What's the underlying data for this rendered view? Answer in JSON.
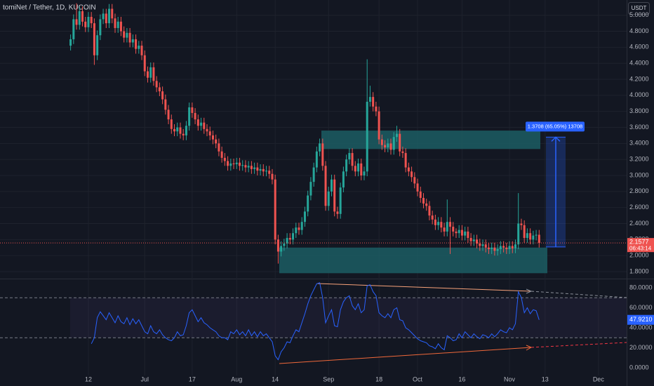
{
  "chart_data": {
    "type": "candlestick",
    "title": "tomiNet / Tether, 1D, KUCOIN",
    "currency_button": "USDT",
    "countdown": "06:43:14",
    "up_color": "#26a69a",
    "down_color": "#ef5350",
    "grid": true,
    "categories": [
      null,
      null,
      null,
      null,
      null,
      null,
      "12",
      null,
      null,
      null,
      null,
      null,
      null,
      null,
      null,
      null,
      null,
      null,
      null,
      null,
      null,
      null,
      null,
      null,
      null,
      "Jul",
      null,
      null,
      null,
      null,
      null,
      null,
      null,
      null,
      null,
      null,
      null,
      null,
      null,
      null,
      null,
      "17",
      null,
      null,
      null,
      null,
      null,
      null,
      null,
      null,
      null,
      null,
      null,
      null,
      null,
      null,
      "Aug",
      null,
      null,
      null,
      null,
      null,
      null,
      null,
      null,
      null,
      null,
      null,
      null,
      "14",
      null,
      null,
      null,
      null,
      null,
      null,
      null,
      null,
      null,
      null,
      null,
      null,
      null,
      null,
      null,
      null,
      null,
      "Sep",
      null,
      null,
      null,
      null,
      null,
      null,
      null,
      null,
      null,
      null,
      null,
      null,
      null,
      null,
      null,
      null,
      "18",
      null,
      null,
      null,
      null,
      null,
      null,
      null,
      null,
      null,
      null,
      null,
      null,
      "Oct",
      null,
      null,
      null,
      null,
      null,
      null,
      null,
      null,
      null,
      null,
      null,
      null,
      null,
      null,
      "16",
      null,
      null,
      null,
      null,
      null,
      null,
      null,
      null,
      null,
      null,
      null,
      null,
      null,
      null,
      null,
      "Nov",
      null,
      null,
      null,
      null,
      null,
      null,
      null,
      null,
      null,
      null,
      null,
      "13",
      null,
      null,
      null,
      null,
      null,
      null,
      null,
      null,
      null,
      null,
      null,
      null,
      null,
      null,
      null,
      null,
      null,
      "Dec",
      null,
      null,
      null,
      null,
      null,
      null,
      null,
      null,
      null
    ],
    "open": [
      4.62,
      4.7,
      4.95,
      4.88,
      5.05,
      4.92,
      4.85,
      4.98,
      4.9,
      4.5,
      4.75,
      4.95,
      5.02,
      4.9,
      5.08,
      4.96,
      4.84,
      4.92,
      4.8,
      4.72,
      4.78,
      4.66,
      4.7,
      4.58,
      4.62,
      4.5,
      4.3,
      4.22,
      4.35,
      4.18,
      4.1,
      4.05,
      3.95,
      3.82,
      3.7,
      3.58,
      3.55,
      3.6,
      3.52,
      3.5,
      3.62,
      3.85,
      3.78,
      3.7,
      3.62,
      3.66,
      3.58,
      3.55,
      3.5,
      3.45,
      3.4,
      3.3,
      3.22,
      3.18,
      3.12,
      3.15,
      3.14,
      3.16,
      3.12,
      3.13,
      3.1,
      3.12,
      3.08,
      3.1,
      3.06,
      3.08,
      3.05,
      3.06,
      3.02,
      2.95,
      2.2,
      2.05,
      2.12,
      2.15,
      2.22,
      2.2,
      2.28,
      2.35,
      2.32,
      2.42,
      2.55,
      2.75,
      2.92,
      3.1,
      3.3,
      3.4,
      3.12,
      2.62,
      2.8,
      2.95,
      2.55,
      2.52,
      2.85,
      3.05,
      3.2,
      3.28,
      3.12,
      3.05,
      3.15,
      3.0,
      3.05,
      3.92,
      3.98,
      3.86,
      3.8,
      3.45,
      3.38,
      3.35,
      3.4,
      3.32,
      3.48,
      3.52,
      3.3,
      3.28,
      3.1,
      3.05,
      2.98,
      2.9,
      2.8,
      2.72,
      2.65,
      2.62,
      2.5,
      2.45,
      2.38,
      2.42,
      2.35,
      2.3,
      2.42,
      2.36,
      2.3,
      2.28,
      2.32,
      2.25,
      2.3,
      2.22,
      2.18,
      2.2,
      2.15,
      2.12,
      2.14,
      2.1,
      2.08,
      2.1,
      2.06,
      2.08,
      2.12,
      2.1,
      2.08,
      2.12,
      2.09,
      2.14,
      2.4,
      2.38,
      2.22,
      2.28,
      2.2,
      2.25,
      2.26,
      null,
      null,
      null,
      null,
      null,
      null,
      null,
      null,
      null,
      null,
      null,
      null,
      null,
      null,
      null,
      null,
      null,
      null,
      null,
      null,
      null,
      null,
      null,
      null,
      null,
      null,
      null,
      null,
      null
    ],
    "high": [
      4.76,
      5.01,
      5.15,
      5.11,
      5.11,
      4.98,
      5.04,
      5.04,
      4.96,
      4.81,
      5.01,
      5.08,
      5.08,
      5.14,
      5.14,
      5.02,
      4.98,
      4.98,
      4.86,
      4.84,
      4.84,
      4.76,
      4.76,
      4.68,
      4.68,
      4.56,
      4.36,
      4.41,
      4.41,
      4.24,
      4.16,
      4.11,
      4.01,
      3.88,
      3.76,
      3.64,
      3.66,
      3.66,
      3.58,
      3.68,
      3.91,
      3.91,
      3.84,
      3.76,
      3.72,
      3.72,
      3.64,
      3.61,
      3.56,
      3.51,
      3.46,
      3.36,
      3.28,
      3.24,
      3.21,
      3.21,
      3.22,
      3.22,
      3.19,
      3.19,
      3.18,
      3.18,
      3.16,
      3.16,
      3.14,
      3.14,
      3.12,
      3.12,
      3.08,
      3.01,
      2.26,
      2.18,
      2.21,
      2.28,
      2.28,
      2.34,
      2.41,
      2.41,
      2.48,
      2.61,
      2.81,
      2.98,
      3.16,
      3.36,
      3.46,
      3.46,
      3.18,
      2.86,
      3.01,
      3.01,
      2.61,
      2.91,
      3.11,
      3.26,
      3.34,
      3.34,
      3.18,
      3.21,
      3.21,
      3.11,
      4.45,
      4.12,
      4.04,
      3.92,
      3.86,
      3.51,
      3.44,
      3.46,
      3.46,
      3.54,
      3.62,
      3.58,
      3.36,
      3.34,
      3.16,
      3.11,
      3.04,
      2.96,
      2.86,
      2.78,
      2.71,
      2.68,
      2.56,
      2.51,
      2.48,
      2.48,
      2.41,
      2.7,
      2.48,
      2.42,
      2.34,
      2.38,
      2.38,
      2.36,
      2.36,
      2.28,
      2.26,
      2.26,
      2.21,
      2.2,
      2.2,
      2.16,
      2.16,
      2.16,
      2.14,
      2.18,
      2.18,
      2.16,
      2.18,
      2.18,
      2.2,
      2.78,
      2.46,
      2.44,
      2.34,
      2.34,
      2.31,
      2.32,
      2.32,
      null,
      null,
      null,
      null,
      null,
      null,
      null,
      null,
      null,
      null,
      null,
      null,
      null,
      null,
      null,
      null,
      null,
      null,
      null,
      null,
      null,
      null,
      null,
      null,
      null,
      null,
      null,
      null,
      null
    ],
    "low": [
      4.56,
      4.64,
      4.82,
      4.82,
      4.86,
      4.79,
      4.79,
      4.84,
      4.38,
      4.44,
      4.69,
      4.89,
      4.84,
      4.84,
      4.9,
      4.78,
      4.78,
      4.74,
      4.66,
      4.66,
      4.6,
      4.6,
      4.52,
      4.52,
      4.44,
      4.24,
      4.16,
      4.16,
      4.12,
      4.04,
      3.99,
      3.89,
      3.76,
      3.64,
      3.52,
      3.49,
      3.49,
      3.46,
      3.44,
      3.44,
      3.56,
      3.72,
      3.64,
      3.56,
      3.56,
      3.52,
      3.49,
      3.44,
      3.39,
      3.34,
      3.24,
      3.16,
      3.12,
      3.06,
      3.06,
      3.08,
      3.08,
      3.06,
      3.06,
      3.04,
      3.04,
      3.02,
      3.02,
      3.0,
      3.0,
      2.99,
      2.99,
      2.96,
      2.89,
      2.14,
      1.9,
      1.99,
      2.06,
      2.09,
      2.14,
      2.14,
      2.22,
      2.26,
      2.26,
      2.36,
      2.49,
      2.69,
      2.86,
      3.04,
      3.24,
      3.06,
      2.56,
      2.56,
      2.74,
      2.49,
      2.46,
      2.46,
      2.79,
      2.99,
      3.14,
      3.06,
      2.99,
      2.99,
      2.94,
      2.94,
      2.99,
      3.86,
      3.8,
      3.74,
      3.39,
      3.32,
      3.29,
      3.29,
      3.26,
      3.26,
      3.42,
      3.24,
      3.22,
      3.04,
      2.99,
      2.92,
      2.84,
      2.74,
      2.66,
      2.59,
      2.56,
      2.44,
      2.39,
      2.32,
      2.32,
      2.29,
      2.24,
      2.24,
      2.02,
      2.24,
      2.22,
      2.22,
      2.19,
      2.19,
      2.16,
      2.12,
      2.12,
      2.09,
      2.06,
      2.06,
      2.04,
      2.02,
      2.02,
      2.0,
      2.0,
      2.02,
      2.04,
      2.02,
      2.02,
      2.03,
      2.03,
      2.08,
      2.32,
      2.16,
      2.16,
      2.14,
      2.14,
      2.19,
      2.1,
      null,
      null,
      null,
      null,
      null,
      null,
      null,
      null,
      null,
      null,
      null,
      null,
      null,
      null,
      null,
      null,
      null,
      null,
      null,
      null,
      null,
      null,
      null,
      null,
      null,
      null,
      null,
      null,
      null
    ],
    "close": [
      4.7,
      4.95,
      4.88,
      5.05,
      4.92,
      4.85,
      4.98,
      4.9,
      4.5,
      4.75,
      4.95,
      5.02,
      4.9,
      5.08,
      4.96,
      4.84,
      4.92,
      4.8,
      4.72,
      4.78,
      4.66,
      4.7,
      4.58,
      4.62,
      4.5,
      4.3,
      4.22,
      4.35,
      4.18,
      4.1,
      4.05,
      3.95,
      3.82,
      3.7,
      3.58,
      3.55,
      3.6,
      3.52,
      3.5,
      3.62,
      3.85,
      3.78,
      3.7,
      3.62,
      3.66,
      3.58,
      3.55,
      3.5,
      3.45,
      3.4,
      3.3,
      3.22,
      3.18,
      3.12,
      3.15,
      3.14,
      3.16,
      3.12,
      3.13,
      3.1,
      3.12,
      3.08,
      3.1,
      3.06,
      3.08,
      3.05,
      3.06,
      3.02,
      2.95,
      2.2,
      2.05,
      2.12,
      2.15,
      2.22,
      2.2,
      2.28,
      2.35,
      2.32,
      2.42,
      2.55,
      2.75,
      2.92,
      3.1,
      3.3,
      3.4,
      3.12,
      2.62,
      2.8,
      2.95,
      2.55,
      2.52,
      2.85,
      3.05,
      3.2,
      3.28,
      3.12,
      3.05,
      3.15,
      3.0,
      3.05,
      3.92,
      3.98,
      3.86,
      3.8,
      3.45,
      3.38,
      3.35,
      3.4,
      3.32,
      3.48,
      3.52,
      3.3,
      3.28,
      3.1,
      3.05,
      2.98,
      2.9,
      2.8,
      2.72,
      2.65,
      2.62,
      2.5,
      2.45,
      2.38,
      2.42,
      2.35,
      2.3,
      2.42,
      2.36,
      2.3,
      2.28,
      2.32,
      2.25,
      2.3,
      2.22,
      2.18,
      2.2,
      2.15,
      2.12,
      2.14,
      2.1,
      2.08,
      2.1,
      2.06,
      2.08,
      2.12,
      2.1,
      2.08,
      2.12,
      2.09,
      2.14,
      2.4,
      2.38,
      2.22,
      2.28,
      2.2,
      2.25,
      2.26,
      2.1577,
      null,
      null,
      null,
      null,
      null,
      null,
      null,
      null,
      null,
      null,
      null,
      null,
      null,
      null,
      null,
      null,
      null,
      null,
      null,
      null,
      null,
      null,
      null,
      null,
      null,
      null,
      null,
      null,
      null
    ],
    "ylim": [
      1.73,
      5.19
    ],
    "yticks": [
      {
        "value": 1.8,
        "label": "1.8000"
      },
      {
        "value": 2.0,
        "label": "2.0000"
      },
      {
        "value": 2.2,
        "label": "2.2000"
      },
      {
        "value": 2.4,
        "label": "2.4000"
      },
      {
        "value": 2.6,
        "label": "2.6000"
      },
      {
        "value": 2.8,
        "label": "2.8000"
      },
      {
        "value": 3.0,
        "label": "3.0000"
      },
      {
        "value": 3.2,
        "label": "3.2000"
      },
      {
        "value": 3.4,
        "label": "3.4000"
      },
      {
        "value": 3.6,
        "label": "3.6000"
      },
      {
        "value": 3.8,
        "label": "3.8000"
      },
      {
        "value": 4.0,
        "label": "4.0000"
      },
      {
        "value": 4.2,
        "label": "4.2000"
      },
      {
        "value": 4.4,
        "label": "4.4000"
      },
      {
        "value": 4.6,
        "label": "4.6000"
      },
      {
        "value": 4.8,
        "label": "4.8000"
      },
      {
        "value": 5.0,
        "label": "5.0000"
      }
    ],
    "zones": [
      {
        "top": 3.56,
        "bottom": 3.33,
        "color": "#1c5d63"
      },
      {
        "top": 2.1,
        "bottom": 1.78,
        "color": "#1c5d63"
      }
    ],
    "measure": {
      "from": 2.1077,
      "to": 3.4785,
      "label": "1.3708 (65.05%) 13708",
      "color": "#2962ff"
    },
    "rsi": {
      "color": "#2962ff",
      "value_label": "47.9210",
      "levels": [
        70,
        30
      ],
      "ylim": [
        -7.7,
        87
      ],
      "yticks": [
        {
          "value": 0,
          "label": "0.0000"
        },
        {
          "value": 20,
          "label": "20.0000"
        },
        {
          "value": 40,
          "label": "40.0000"
        },
        {
          "value": 60,
          "label": "60.0000"
        },
        {
          "value": 80,
          "label": "80.0000"
        }
      ],
      "values": [
        null,
        null,
        null,
        null,
        null,
        null,
        null,
        24,
        30,
        50,
        56,
        52,
        48,
        55,
        50,
        45,
        52,
        46,
        44,
        50,
        43,
        49,
        44,
        48,
        42,
        36,
        34,
        42,
        36,
        34,
        38,
        33,
        30,
        28,
        27,
        30,
        36,
        32,
        33,
        42,
        55,
        58,
        52,
        46,
        50,
        45,
        43,
        40,
        38,
        36,
        32,
        30,
        30,
        28,
        36,
        34,
        38,
        33,
        36,
        32,
        38,
        32,
        36,
        31,
        36,
        32,
        34,
        30,
        26,
        12,
        8,
        16,
        20,
        26,
        25,
        32,
        38,
        36,
        45,
        54,
        64,
        72,
        78,
        84,
        85,
        70,
        45,
        52,
        58,
        42,
        41,
        58,
        66,
        70,
        72,
        62,
        58,
        64,
        55,
        58,
        82,
        83,
        76,
        72,
        55,
        52,
        50,
        54,
        50,
        58,
        60,
        48,
        47,
        40,
        38,
        35,
        32,
        29,
        27,
        26,
        25,
        22,
        21,
        19,
        24,
        20,
        18,
        32,
        30,
        27,
        28,
        34,
        30,
        36,
        33,
        30,
        34,
        31,
        29,
        33,
        32,
        30,
        34,
        31,
        34,
        38,
        36,
        35,
        40,
        38,
        44,
        76,
        70,
        55,
        60,
        54,
        58,
        57,
        47.921,
        null,
        null,
        null,
        null,
        null,
        null,
        null,
        null,
        null,
        null,
        null,
        null,
        null,
        null,
        null,
        null,
        null,
        null,
        null,
        null,
        null,
        null,
        null,
        null,
        null,
        null,
        null,
        null,
        null
      ]
    }
  }
}
